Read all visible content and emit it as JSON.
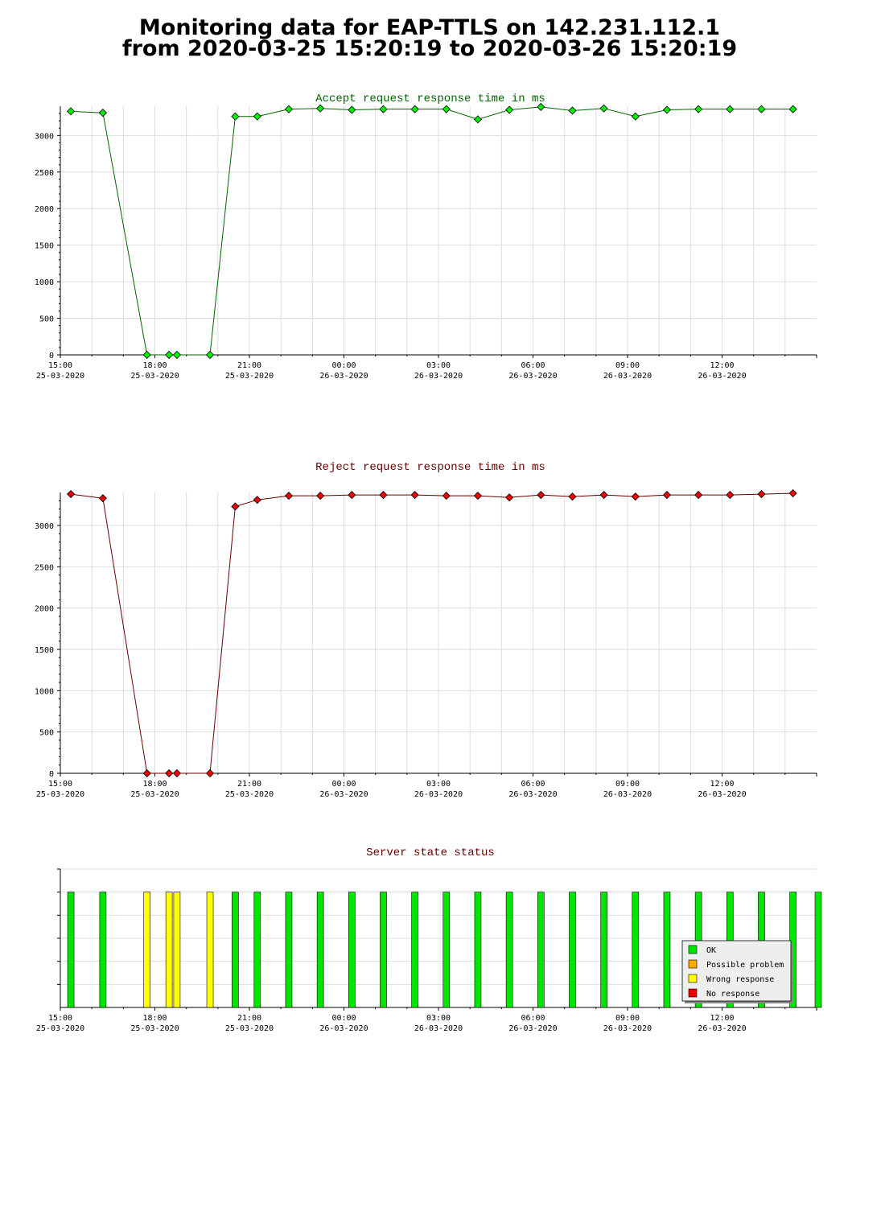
{
  "title": {
    "line1": "Monitoring data for EAP-TTLS on 142.231.112.1",
    "line2": "from 2020-03-25 15:20:19 to 2020-03-26 15:20:19"
  },
  "x_tick_labels": [
    {
      "time": "15:00",
      "date": "25-03-2020",
      "hour": 15
    },
    {
      "time": "18:00",
      "date": "25-03-2020",
      "hour": 18
    },
    {
      "time": "21:00",
      "date": "25-03-2020",
      "hour": 21
    },
    {
      "time": "00:00",
      "date": "26-03-2020",
      "hour": 24
    },
    {
      "time": "03:00",
      "date": "26-03-2020",
      "hour": 27
    },
    {
      "time": "06:00",
      "date": "26-03-2020",
      "hour": 30
    },
    {
      "time": "09:00",
      "date": "26-03-2020",
      "hour": 33
    },
    {
      "time": "12:00",
      "date": "26-03-2020",
      "hour": 36
    }
  ],
  "colors": {
    "accept_line": "#006400",
    "accept_marker": "#00ee00",
    "reject_line": "#660000",
    "reject_marker": "#ee0000",
    "accept_title": "#006400",
    "reject_title": "#660000",
    "status_title": "#660000",
    "ok": "#00e600",
    "possible_problem": "#ffa500",
    "wrong_response": "#ffff00",
    "no_response": "#ee0000"
  },
  "chart_data": [
    {
      "type": "line",
      "title": "Accept request response time in ms",
      "xlabel": "",
      "ylabel": "",
      "xlim": [
        "2020-03-25 15:00",
        "2020-03-26 15:00"
      ],
      "ylim": [
        0,
        3400
      ],
      "yticks": [
        0,
        500,
        1000,
        1500,
        2000,
        2500,
        3000
      ],
      "grid": true,
      "x": [
        "2020-03-25 15:20",
        "2020-03-25 16:21",
        "2020-03-25 17:45",
        "2020-03-25 18:27",
        "2020-03-25 18:42",
        "2020-03-25 19:45",
        "2020-03-25 20:33",
        "2020-03-25 21:15",
        "2020-03-25 22:15",
        "2020-03-25 23:15",
        "2020-03-26 00:15",
        "2020-03-26 01:15",
        "2020-03-26 02:15",
        "2020-03-26 03:15",
        "2020-03-26 04:15",
        "2020-03-26 05:15",
        "2020-03-26 06:15",
        "2020-03-26 07:15",
        "2020-03-26 08:15",
        "2020-03-26 09:15",
        "2020-03-26 10:15",
        "2020-03-26 11:15",
        "2020-03-26 12:15",
        "2020-03-26 13:15",
        "2020-03-26 14:15"
      ],
      "y": [
        3330,
        3310,
        0,
        0,
        0,
        0,
        3260,
        3260,
        3360,
        3370,
        3350,
        3360,
        3360,
        3360,
        3220,
        3350,
        3390,
        3340,
        3370,
        3260,
        3350,
        3360,
        3360,
        3360,
        3360
      ]
    },
    {
      "type": "line",
      "title": "Reject request response time in ms",
      "xlabel": "",
      "ylabel": "",
      "xlim": [
        "2020-03-25 15:00",
        "2020-03-26 15:00"
      ],
      "ylim": [
        0,
        3400
      ],
      "yticks": [
        0,
        500,
        1000,
        1500,
        2000,
        2500,
        3000
      ],
      "grid": true,
      "x": [
        "2020-03-25 15:20",
        "2020-03-25 16:21",
        "2020-03-25 17:45",
        "2020-03-25 18:27",
        "2020-03-25 18:42",
        "2020-03-25 19:45",
        "2020-03-25 20:33",
        "2020-03-25 21:15",
        "2020-03-25 22:15",
        "2020-03-25 23:15",
        "2020-03-26 00:15",
        "2020-03-26 01:15",
        "2020-03-26 02:15",
        "2020-03-26 03:15",
        "2020-03-26 04:15",
        "2020-03-26 05:15",
        "2020-03-26 06:15",
        "2020-03-26 07:15",
        "2020-03-26 08:15",
        "2020-03-26 09:15",
        "2020-03-26 10:15",
        "2020-03-26 11:15",
        "2020-03-26 12:15",
        "2020-03-26 13:15",
        "2020-03-26 14:15"
      ],
      "y": [
        3380,
        3330,
        0,
        0,
        0,
        0,
        3230,
        3310,
        3360,
        3360,
        3370,
        3370,
        3370,
        3360,
        3360,
        3340,
        3370,
        3350,
        3370,
        3350,
        3370,
        3370,
        3370,
        3380,
        3390
      ]
    },
    {
      "type": "bar",
      "title": "Server state status",
      "xlim": [
        "2020-03-25 15:00",
        "2020-03-26 15:00"
      ],
      "legend_position": "bottom-right",
      "legend": [
        "OK",
        "Possible problem",
        "Wrong response",
        "No response"
      ],
      "x": [
        "2020-03-25 15:20",
        "2020-03-25 16:21",
        "2020-03-25 17:45",
        "2020-03-25 18:27",
        "2020-03-25 18:42",
        "2020-03-25 19:45",
        "2020-03-25 20:33",
        "2020-03-25 21:15",
        "2020-03-25 22:15",
        "2020-03-25 23:15",
        "2020-03-26 00:15",
        "2020-03-26 01:15",
        "2020-03-26 02:15",
        "2020-03-26 03:15",
        "2020-03-26 04:15",
        "2020-03-26 05:15",
        "2020-03-26 06:15",
        "2020-03-26 07:15",
        "2020-03-26 08:15",
        "2020-03-26 09:15",
        "2020-03-26 10:15",
        "2020-03-26 11:15",
        "2020-03-26 12:15",
        "2020-03-26 13:15",
        "2020-03-26 14:15",
        "2020-03-26 15:10"
      ],
      "states": [
        "OK",
        "OK",
        "Wrong response",
        "Wrong response",
        "Wrong response",
        "Wrong response",
        "OK",
        "OK",
        "OK",
        "OK",
        "OK",
        "OK",
        "OK",
        "OK",
        "OK",
        "OK",
        "OK",
        "OK",
        "OK",
        "OK",
        "OK",
        "OK",
        "OK",
        "OK",
        "OK",
        "OK"
      ]
    }
  ]
}
